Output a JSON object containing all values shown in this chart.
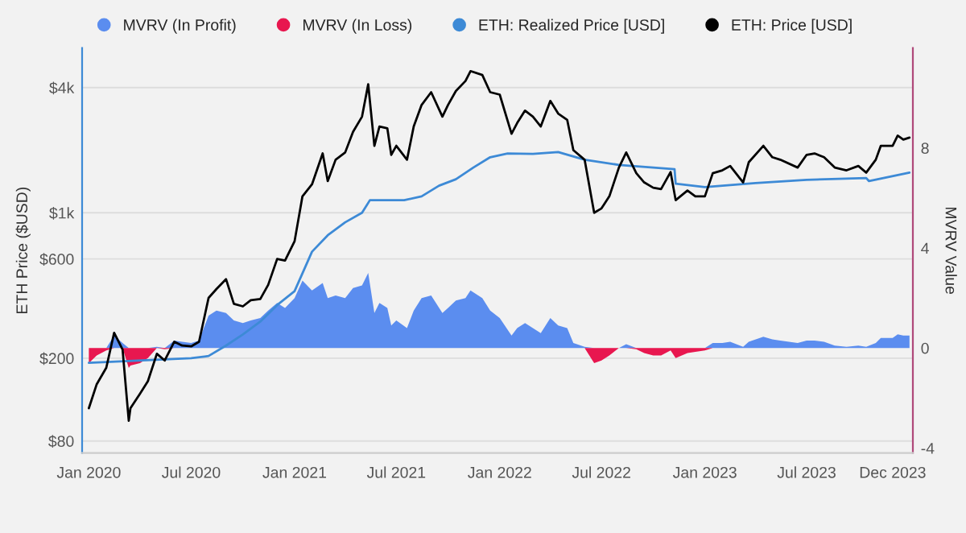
{
  "chart_data": {
    "type": "line",
    "xlabel": null,
    "ylabel": "ETH Price ($USD)",
    "y2label": "MVRV Value",
    "log": "y",
    "grid": "y",
    "legend": "top",
    "x": [
      "2020-01-01",
      "2020-01-15",
      "2020-02-01",
      "2020-02-15",
      "2020-03-01",
      "2020-03-12",
      "2020-03-15",
      "2020-04-01",
      "2020-04-15",
      "2020-05-01",
      "2020-05-15",
      "2020-06-01",
      "2020-06-15",
      "2020-07-01",
      "2020-07-15",
      "2020-08-01",
      "2020-08-15",
      "2020-09-01",
      "2020-09-15",
      "2020-10-01",
      "2020-10-15",
      "2020-11-01",
      "2020-11-15",
      "2020-12-01",
      "2020-12-15",
      "2021-01-01",
      "2021-01-15",
      "2021-02-01",
      "2021-02-20",
      "2021-03-01",
      "2021-03-15",
      "2021-04-01",
      "2021-04-15",
      "2021-05-01",
      "2021-05-12",
      "2021-05-23",
      "2021-06-01",
      "2021-06-15",
      "2021-06-22",
      "2021-07-01",
      "2021-07-20",
      "2021-08-01",
      "2021-08-15",
      "2021-09-01",
      "2021-09-21",
      "2021-10-01",
      "2021-10-15",
      "2021-11-01",
      "2021-11-10",
      "2021-12-01",
      "2021-12-15",
      "2022-01-01",
      "2022-01-22",
      "2022-02-01",
      "2022-02-15",
      "2022-03-01",
      "2022-03-15",
      "2022-04-01",
      "2022-04-15",
      "2022-05-01",
      "2022-05-12",
      "2022-06-01",
      "2022-06-18",
      "2022-07-01",
      "2022-07-15",
      "2022-08-01",
      "2022-08-14",
      "2022-09-01",
      "2022-09-15",
      "2022-10-01",
      "2022-10-15",
      "2022-11-01",
      "2022-11-10",
      "2022-12-01",
      "2022-12-15",
      "2023-01-01",
      "2023-01-15",
      "2023-02-01",
      "2023-02-15",
      "2023-03-10",
      "2023-03-20",
      "2023-04-15",
      "2023-05-01",
      "2023-05-15",
      "2023-06-15",
      "2023-07-01",
      "2023-07-15",
      "2023-08-01",
      "2023-08-20",
      "2023-09-10",
      "2023-10-01",
      "2023-10-15",
      "2023-11-01",
      "2023-11-10",
      "2023-12-01",
      "2023-12-10",
      "2023-12-20",
      "2023-12-31"
    ],
    "series": [
      {
        "name": "MVRV (In Profit)",
        "type": "area",
        "axis": "y2",
        "color": "#5b8def",
        "values": [
          0,
          0,
          0,
          0.5,
          0.2,
          0,
          0,
          0,
          0,
          0.05,
          0,
          0.3,
          0.25,
          0.2,
          0.3,
          1.3,
          1.5,
          1.4,
          1.1,
          1.0,
          1.1,
          1.2,
          1.5,
          1.8,
          1.6,
          2.0,
          2.7,
          2.3,
          2.6,
          2.0,
          2.1,
          2.0,
          2.4,
          2.5,
          3.0,
          1.4,
          1.8,
          1.6,
          0.9,
          1.1,
          0.8,
          1.5,
          2.0,
          2.1,
          1.4,
          1.6,
          1.9,
          2.0,
          2.3,
          2.0,
          1.5,
          1.2,
          0.5,
          0.8,
          1.0,
          0.8,
          0.6,
          1.2,
          0.9,
          0.8,
          0.2,
          0.05,
          0,
          0,
          0,
          0,
          0.15,
          0,
          0,
          0,
          0,
          0,
          0,
          0,
          0,
          0,
          0.2,
          0.2,
          0.25,
          0.05,
          0.25,
          0.45,
          0.35,
          0.3,
          0.2,
          0.3,
          0.3,
          0.25,
          0.1,
          0.05,
          0.1,
          0.05,
          0.2,
          0.4,
          0.4,
          0.55,
          0.5,
          0.5
        ]
      },
      {
        "name": "MVRV (In Loss)",
        "type": "area",
        "axis": "y2",
        "color": "#e8174f",
        "values": [
          -0.6,
          -0.3,
          -0.1,
          0,
          0,
          -0.8,
          -0.7,
          -0.6,
          -0.4,
          0,
          -0.05,
          0,
          0,
          0,
          0,
          0,
          0,
          0,
          0,
          0,
          0,
          0,
          0,
          0,
          0,
          0,
          0,
          0,
          0,
          0,
          0,
          0,
          0,
          0,
          0,
          0,
          0,
          0,
          0,
          0,
          0,
          0,
          0,
          0,
          0,
          0,
          0,
          0,
          0,
          0,
          0,
          0,
          0,
          0,
          0,
          0,
          0,
          0,
          0,
          0,
          0,
          0,
          -0.6,
          -0.5,
          -0.3,
          0,
          0,
          -0.05,
          -0.2,
          -0.3,
          -0.3,
          -0.1,
          -0.4,
          -0.2,
          -0.15,
          -0.1,
          0,
          0,
          0,
          0,
          0,
          0,
          0,
          0,
          0,
          0,
          0,
          0,
          0,
          0,
          0,
          0,
          0,
          0,
          0,
          0,
          0,
          0
        ]
      },
      {
        "name": "ETH: Realized Price [USD]",
        "color": "#3d8ad6",
        "x": [
          "2020-01-01",
          "2020-07-01",
          "2020-08-01",
          "2020-09-01",
          "2020-10-01",
          "2020-11-01",
          "2020-12-01",
          "2021-01-01",
          "2021-02-01",
          "2021-03-01",
          "2021-04-01",
          "2021-05-01",
          "2021-05-15",
          "2021-06-15",
          "2021-07-15",
          "2021-08-15",
          "2021-09-15",
          "2021-10-15",
          "2021-11-15",
          "2021-12-15",
          "2022-01-15",
          "2022-03-01",
          "2022-04-15",
          "2022-06-01",
          "2022-08-01",
          "2022-11-08",
          "2022-11-10",
          "2023-01-01",
          "2023-04-01",
          "2023-07-01",
          "2023-10-15",
          "2023-10-20",
          "2023-12-31"
        ],
        "values": [
          190,
          200,
          205,
          230,
          260,
          300,
          360,
          420,
          650,
          780,
          900,
          1000,
          1150,
          1150,
          1150,
          1200,
          1350,
          1450,
          1650,
          1850,
          1930,
          1920,
          1960,
          1800,
          1700,
          1620,
          1380,
          1330,
          1390,
          1440,
          1470,
          1420,
          1560
        ]
      },
      {
        "name": "ETH: Price [USD]",
        "color": "#000000",
        "values": [
          115,
          150,
          180,
          265,
          220,
          100,
          115,
          135,
          155,
          210,
          195,
          240,
          230,
          228,
          240,
          390,
          430,
          480,
          365,
          355,
          380,
          385,
          450,
          600,
          590,
          730,
          1200,
          1370,
          1930,
          1420,
          1800,
          1950,
          2450,
          2900,
          4150,
          2100,
          2600,
          2550,
          1900,
          2100,
          1800,
          2600,
          3300,
          3800,
          2900,
          3300,
          3850,
          4300,
          4800,
          4600,
          3800,
          3700,
          2400,
          2700,
          3100,
          2900,
          2600,
          3450,
          3000,
          2800,
          2000,
          1800,
          1000,
          1050,
          1200,
          1650,
          1950,
          1550,
          1400,
          1320,
          1300,
          1570,
          1150,
          1280,
          1200,
          1200,
          1550,
          1600,
          1680,
          1400,
          1750,
          2100,
          1850,
          1800,
          1650,
          1900,
          1930,
          1850,
          1650,
          1600,
          1680,
          1560,
          1800,
          2100,
          2100,
          2350,
          2250,
          2300
        ]
      }
    ],
    "xlim": [
      "2019-12-20",
      "2024-01-06"
    ],
    "xticks": [
      {
        "value": "2020-01-01",
        "label": "Jan 2020"
      },
      {
        "value": "2020-07-01",
        "label": "Jul 2020"
      },
      {
        "value": "2021-01-01",
        "label": "Jan 2021"
      },
      {
        "value": "2021-07-01",
        "label": "Jul 2021"
      },
      {
        "value": "2022-01-01",
        "label": "Jan 2022"
      },
      {
        "value": "2022-07-01",
        "label": "Jul 2022"
      },
      {
        "value": "2023-01-01",
        "label": "Jan 2023"
      },
      {
        "value": "2023-07-01",
        "label": "Jul 2023"
      },
      {
        "value": "2023-12-01",
        "label": "Dec 2023"
      }
    ],
    "ylim": [
      70,
      6200
    ],
    "yticks": [
      {
        "value": 80,
        "label": "$80"
      },
      {
        "value": 200,
        "label": "$200"
      },
      {
        "value": 600,
        "label": "$600"
      },
      {
        "value": 1000,
        "label": "$1k"
      },
      {
        "value": 4000,
        "label": "$4k"
      }
    ],
    "y2lim": [
      -4.2,
      12
    ],
    "y2ticks": [
      -4,
      0,
      4,
      8
    ]
  }
}
